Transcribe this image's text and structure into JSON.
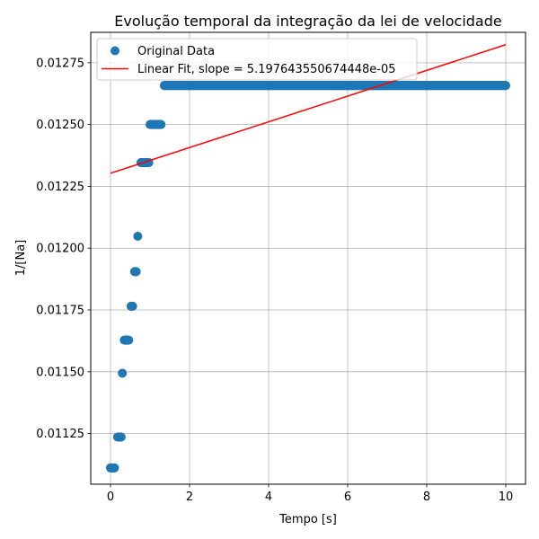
{
  "chart_data": {
    "type": "scatter",
    "title": "Evolução temporal da integração da lei de velocidade",
    "xlabel": "Tempo [s]",
    "ylabel": "1/[Na]",
    "xlim": [
      -0.5,
      10.5
    ],
    "ylim": [
      0.011045,
      0.012873
    ],
    "xticks": [
      0,
      2,
      4,
      6,
      8,
      10
    ],
    "xtick_labels": [
      "0",
      "2",
      "4",
      "6",
      "8",
      "10"
    ],
    "yticks": [
      0.01125,
      0.0115,
      0.01175,
      0.012,
      0.01225,
      0.0125,
      0.01275
    ],
    "ytick_labels": [
      "0.01125",
      "0.01150",
      "0.01175",
      "0.01200",
      "0.01225",
      "0.01250",
      "0.01275"
    ],
    "grid": true,
    "legend_position": "top-left",
    "series": [
      {
        "name": "Original Data",
        "kind": "scatter",
        "color": "#1f77b4",
        "groups": [
          {
            "x_start": 0.0,
            "x_end": 0.1,
            "step": 0.01,
            "y": 0.011111
          },
          {
            "x_start": 0.18,
            "x_end": 0.27,
            "step": 0.01,
            "y": 0.011236
          },
          {
            "x_start": 0.3,
            "x_end": 0.3,
            "step": 0.01,
            "y": 0.011494
          },
          {
            "x_start": 0.35,
            "x_end": 0.46,
            "step": 0.01,
            "y": 0.011628
          },
          {
            "x_start": 0.52,
            "x_end": 0.56,
            "step": 0.01,
            "y": 0.011765
          },
          {
            "x_start": 0.61,
            "x_end": 0.65,
            "step": 0.01,
            "y": 0.011905
          },
          {
            "x_start": 0.69,
            "x_end": 0.69,
            "step": 0.01,
            "y": 0.012048
          },
          {
            "x_start": 0.77,
            "x_end": 0.97,
            "step": 0.01,
            "y": 0.012346
          },
          {
            "x_start": 1.0,
            "x_end": 1.28,
            "step": 0.01,
            "y": 0.0125
          },
          {
            "x_start": 1.36,
            "x_end": 10.0,
            "step": 0.01,
            "y": 0.012658
          }
        ]
      },
      {
        "name": "Linear Fit, slope = 5.197643550674448e-05",
        "kind": "line",
        "color": "#ff0000",
        "x": [
          0,
          10
        ],
        "y": [
          0.012303,
          0.012823
        ]
      }
    ]
  }
}
